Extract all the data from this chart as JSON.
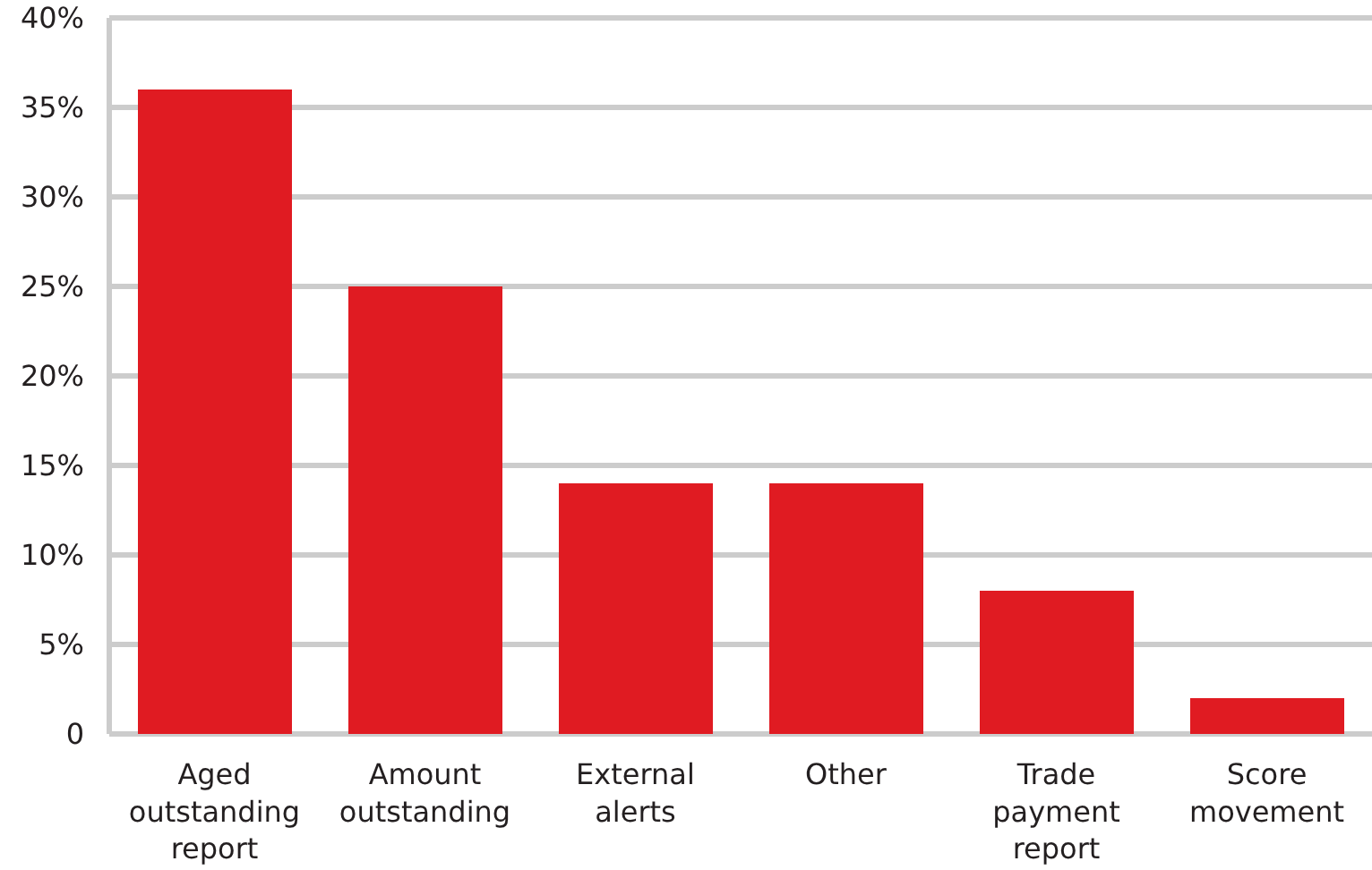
{
  "chart_data": {
    "type": "bar",
    "categories": [
      "Aged outstanding report",
      "Amount outstanding",
      "External alerts",
      "Other",
      "Trade payment report",
      "Score movement"
    ],
    "values": [
      36,
      25,
      14,
      14,
      8,
      2
    ],
    "color": "#e01b22",
    "ylim": [
      0,
      40
    ],
    "yticks": [
      {
        "value": 0,
        "label": "0"
      },
      {
        "value": 5,
        "label": "5%"
      },
      {
        "value": 10,
        "label": "10%"
      },
      {
        "value": 15,
        "label": "15%"
      },
      {
        "value": 20,
        "label": "20%"
      },
      {
        "value": 25,
        "label": "25%"
      },
      {
        "value": 30,
        "label": "30%"
      },
      {
        "value": 35,
        "label": "35%"
      },
      {
        "value": 40,
        "label": "40%"
      }
    ],
    "grid": "y"
  }
}
